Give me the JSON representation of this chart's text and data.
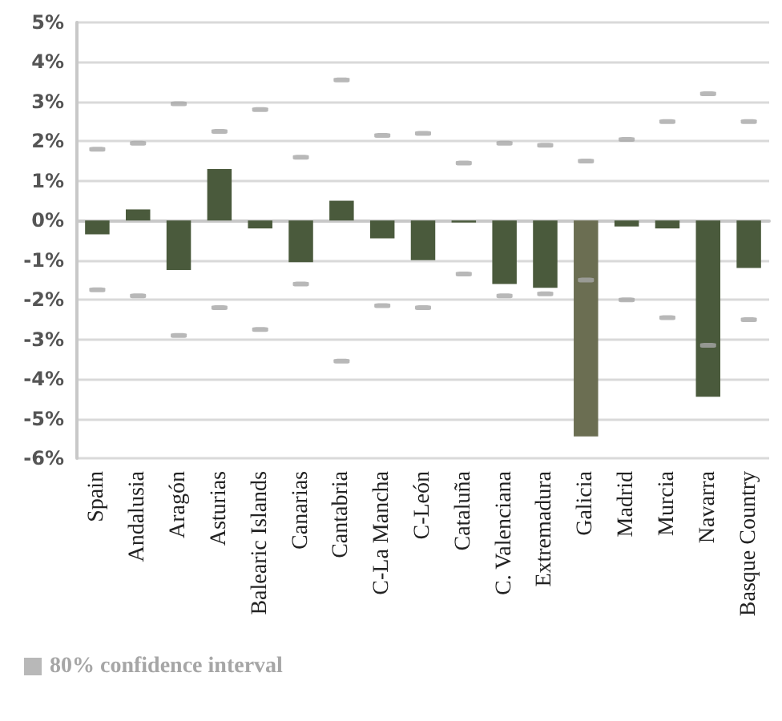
{
  "chart_data": {
    "type": "bar",
    "categories": [
      "Spain",
      "Andalusia",
      "Aragón",
      "Asturias",
      "Balearic Islands",
      "Canarias",
      "Cantabria",
      "C-La Mancha",
      "C-León",
      "Cataluña",
      "C. Valenciana",
      "Extremadura",
      "Galicia",
      "Madrid",
      "Murcia",
      "Navarra",
      "Basque Country"
    ],
    "series": [
      {
        "values": [
          -0.35,
          0.28,
          -1.25,
          1.3,
          -0.2,
          -1.05,
          0.5,
          -0.45,
          -1.0,
          -0.05,
          -1.6,
          -1.7,
          -5.45,
          -0.15,
          -0.2,
          -4.45,
          -1.2
        ],
        "colors": [
          "#4a5a3c",
          "#4a5a3c",
          "#4a5a3c",
          "#4a5a3c",
          "#4a5a3c",
          "#4a5a3c",
          "#4a5a3c",
          "#4a5a3c",
          "#4a5a3c",
          "#4a5a3c",
          "#4a5a3c",
          "#4a5a3c",
          "#6b6e52",
          "#4a5a3c",
          "#4a5a3c",
          "#4a5a3c",
          "#4a5a3c"
        ]
      },
      {
        "type": "scatter",
        "name": "80% confidence interval",
        "color": "#a6a6a6",
        "values": [
          1.8,
          1.95,
          2.95,
          2.25,
          2.8,
          1.6,
          3.55,
          2.15,
          2.2,
          1.45,
          1.95,
          1.9,
          1.5,
          2.05,
          2.5,
          3.2,
          2.5
        ]
      },
      {
        "type": "scatter",
        "color": "#a6a6a6",
        "values": [
          -1.75,
          -1.9,
          -2.9,
          -2.2,
          -2.75,
          -1.6,
          -3.55,
          -2.15,
          -2.2,
          -1.35,
          -1.9,
          -1.85,
          -1.5,
          -2.0,
          -2.45,
          -3.15,
          -2.5
        ]
      }
    ],
    "ylim": [
      -6,
      5
    ],
    "yticks": [
      {
        "value": -6,
        "label": "-6%"
      },
      {
        "value": -5,
        "label": "-5%"
      },
      {
        "value": -4,
        "label": "-4%"
      },
      {
        "value": -3,
        "label": "-3%"
      },
      {
        "value": -2,
        "label": "-2%"
      },
      {
        "value": -1,
        "label": "-1%"
      },
      {
        "value": 0,
        "label": "0%"
      },
      {
        "value": 1,
        "label": "1%"
      },
      {
        "value": 2,
        "label": "2%"
      },
      {
        "value": 3,
        "label": "3%"
      },
      {
        "value": 4,
        "label": "4%"
      },
      {
        "value": 5,
        "label": "5%"
      }
    ],
    "grid": "y",
    "legend": "bottom left"
  }
}
